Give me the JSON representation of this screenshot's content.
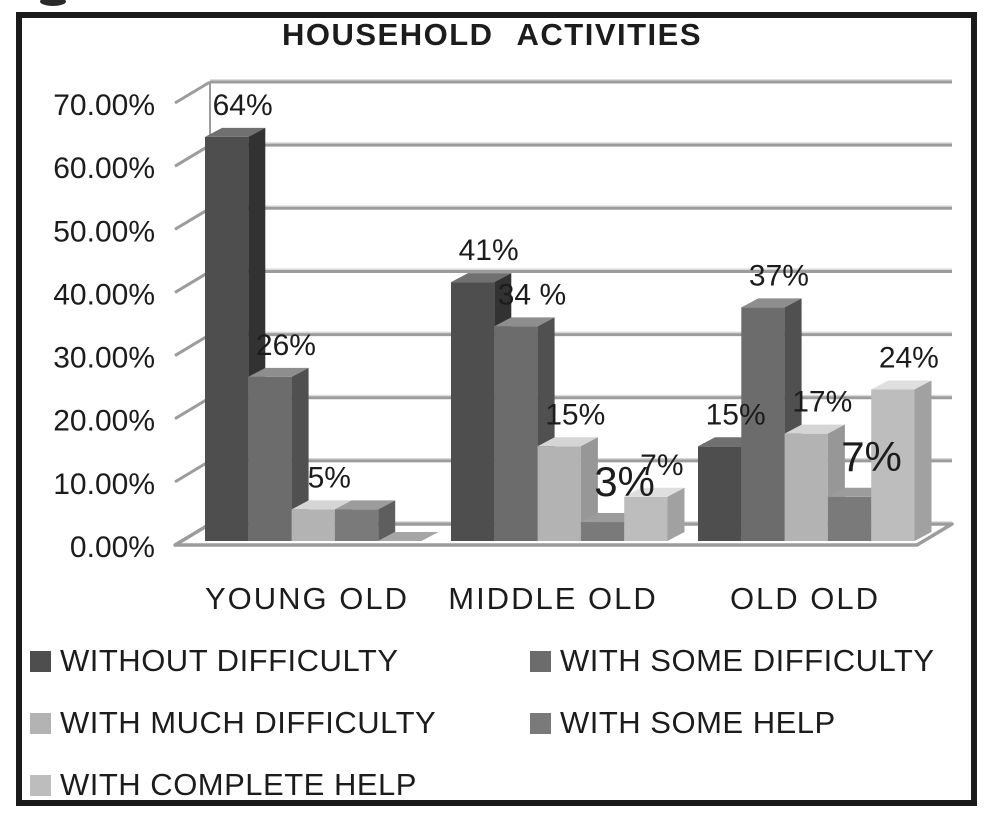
{
  "title": "HOUSEHOLD ACTIVITIES",
  "y_axis": {
    "ticks": [
      "70.00%",
      "60.00%",
      "50.00%",
      "40.00%",
      "30.00%",
      "20.00%",
      "10.00%",
      "0.00%"
    ],
    "min": 0,
    "max": 70,
    "step": 10
  },
  "chart_data": {
    "type": "bar",
    "title": "HOUSEHOLD ACTIVITIES",
    "categories": [
      "YOUNG OLD",
      "MIDDLE OLD",
      "OLD OLD"
    ],
    "series": [
      {
        "name": "WITHOUT DIFFICULTY",
        "color": "#4e4e4e",
        "values": [
          64,
          41,
          15
        ],
        "labels": [
          "64%",
          "41%",
          "15%"
        ],
        "big_labels": [
          false,
          false,
          false
        ]
      },
      {
        "name": "WITH SOME DIFFICULTY",
        "color": "#6c6c6c",
        "values": [
          26,
          34,
          37
        ],
        "labels": [
          "26%",
          "34 %",
          "37%"
        ],
        "big_labels": [
          false,
          false,
          false
        ]
      },
      {
        "name": "WITH MUCH DIFFICULTY",
        "color": "#b3b3b3",
        "values": [
          5,
          15,
          17
        ],
        "labels": [
          "5%",
          "15%",
          "17%"
        ],
        "big_labels": [
          false,
          false,
          false
        ]
      },
      {
        "name": "WITH SOME HELP",
        "color": "#7a7a7a",
        "values": [
          5,
          3,
          7
        ],
        "labels": [
          "",
          "3%",
          "7%"
        ],
        "big_labels": [
          false,
          true,
          true
        ]
      },
      {
        "name": "WITH COMPLETE HELP",
        "color": "#bdbdbd",
        "values": [
          0,
          7,
          24
        ],
        "labels": [
          "",
          "7%",
          "24%"
        ],
        "big_labels": [
          false,
          false,
          false
        ]
      }
    ],
    "ylim": [
      0,
      70
    ],
    "grid": true,
    "legend_position": "bottom",
    "gridline_color": "#9c9c9c",
    "zero_bar_color": "#a6a6a6",
    "text_color": "#1c1c1c"
  }
}
